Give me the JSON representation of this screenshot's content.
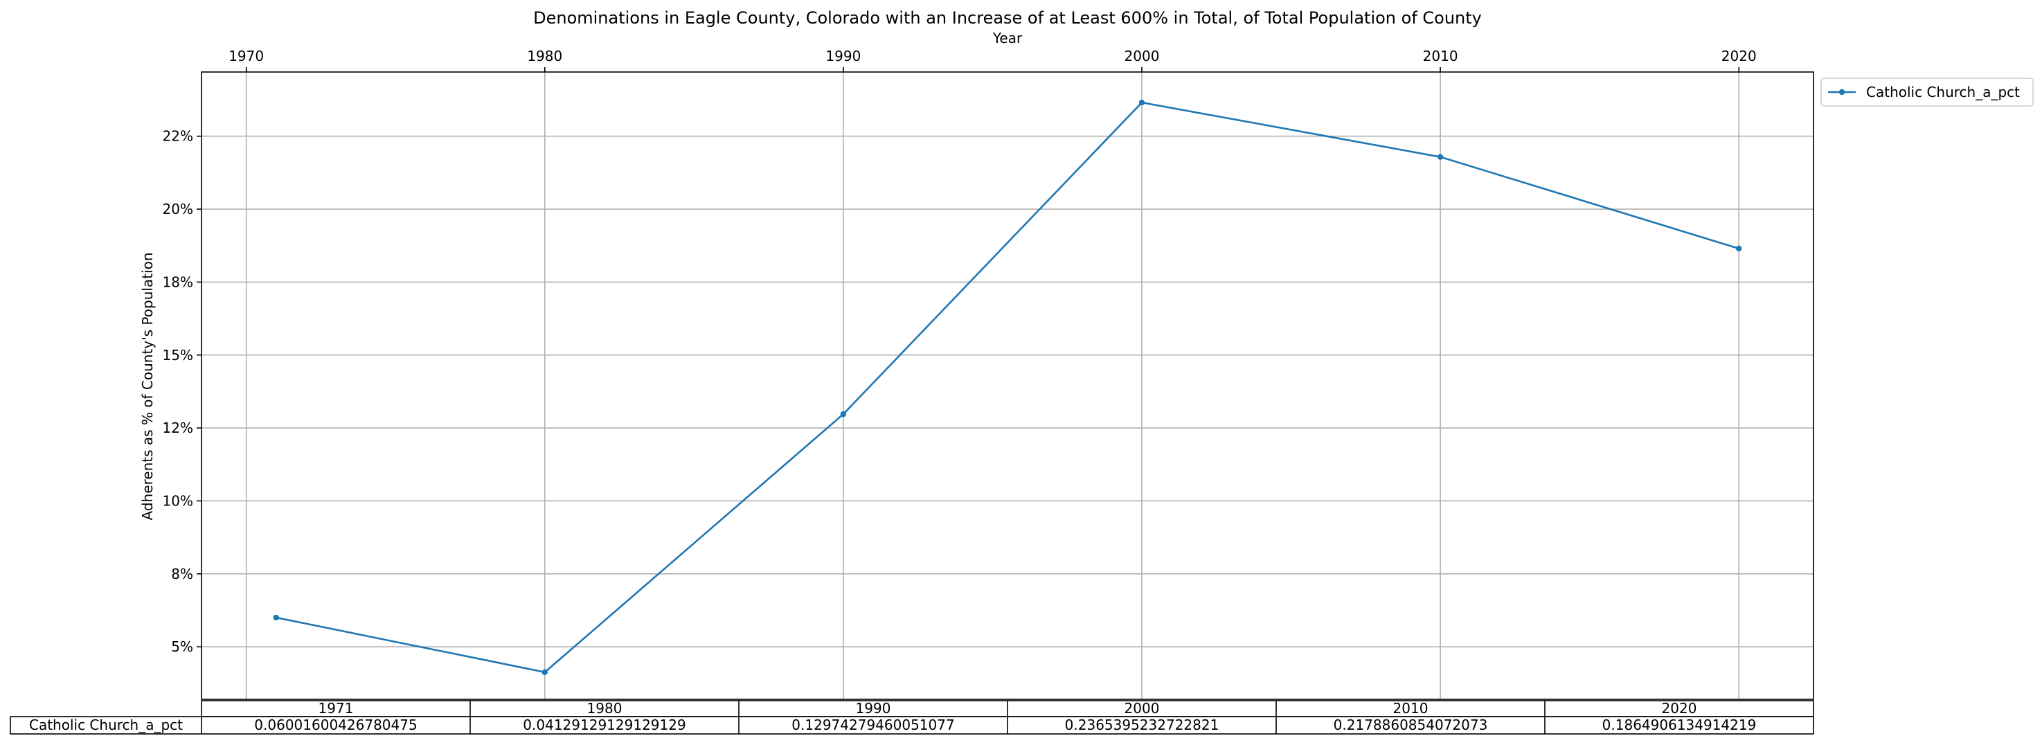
{
  "chart_data": {
    "type": "line",
    "title": "Denominations in Eagle County, Colorado with an Increase of at Least 600% in Total, of Total Population of County",
    "xlabel": "Year",
    "ylabel": "Adherents as % of County's Population",
    "x_ticks": [
      "1970",
      "1980",
      "1990",
      "2000",
      "2010",
      "2020"
    ],
    "xlim": [
      1968.5,
      2022.5
    ],
    "y_ticks": [
      "5%",
      "8%",
      "10%",
      "12%",
      "15%",
      "18%",
      "20%",
      "22%"
    ],
    "y_tick_values": [
      0.05,
      0.075,
      0.1,
      0.125,
      0.15,
      0.175,
      0.2,
      0.225
    ],
    "ylim": [
      0.032,
      0.247
    ],
    "grid": true,
    "legend_position": "outside-top-right",
    "series": [
      {
        "name": "Catholic Church_a_pct",
        "color": "#1f77b4",
        "x": [
          1971,
          1980,
          1990,
          2000,
          2010,
          2020
        ],
        "values": [
          0.06001600426780475,
          0.04129129129129129,
          0.12974279460051077,
          0.2365395232722821,
          0.2178860854072073,
          0.1864906134914219
        ]
      }
    ],
    "table": {
      "columns": [
        "1971",
        "1980",
        "1990",
        "2000",
        "2010",
        "2020"
      ],
      "rows": [
        {
          "label": "Catholic Church_a_pct",
          "cells": [
            "0.06001600426780475",
            "0.04129129129129129",
            "0.12974279460051077",
            "0.2365395232722821",
            "0.2178860854072073",
            "0.1864906134914219"
          ]
        }
      ]
    }
  }
}
